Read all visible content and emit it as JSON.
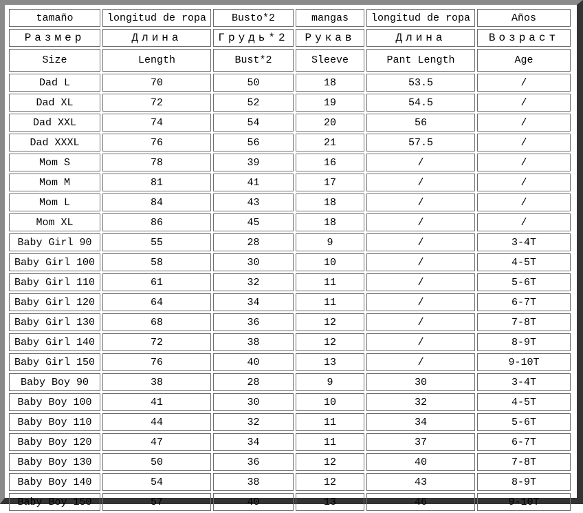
{
  "headers": {
    "spanish": [
      "tamaño",
      "longitud de ropa",
      "Busto*2",
      "mangas",
      "longitud de ropa",
      "Años"
    ],
    "russian": [
      "Размер",
      "Длина",
      "Грудь*2",
      "Рукав",
      "Длина",
      "Возраст"
    ],
    "english": [
      "Size",
      "Length",
      "Bust*2",
      "Sleeve",
      "Pant Length",
      "Age"
    ]
  },
  "rows": [
    [
      "Dad L",
      "70",
      "50",
      "18",
      "53.5",
      "/"
    ],
    [
      "Dad XL",
      "72",
      "52",
      "19",
      "54.5",
      "/"
    ],
    [
      "Dad XXL",
      "74",
      "54",
      "20",
      "56",
      "/"
    ],
    [
      "Dad XXXL",
      "76",
      "56",
      "21",
      "57.5",
      "/"
    ],
    [
      "Mom S",
      "78",
      "39",
      "16",
      "/",
      "/"
    ],
    [
      "Mom M",
      "81",
      "41",
      "17",
      "/",
      "/"
    ],
    [
      "Mom L",
      "84",
      "43",
      "18",
      "/",
      "/"
    ],
    [
      "Mom XL",
      "86",
      "45",
      "18",
      "/",
      "/"
    ],
    [
      "Baby Girl 90",
      "55",
      "28",
      "9",
      "/",
      "3-4T"
    ],
    [
      "Baby Girl 100",
      "58",
      "30",
      "10",
      "/",
      "4-5T"
    ],
    [
      "Baby Girl 110",
      "61",
      "32",
      "11",
      "/",
      "5-6T"
    ],
    [
      "Baby Girl 120",
      "64",
      "34",
      "11",
      "/",
      "6-7T"
    ],
    [
      "Baby Girl 130",
      "68",
      "36",
      "12",
      "/",
      "7-8T"
    ],
    [
      "Baby Girl 140",
      "72",
      "38",
      "12",
      "/",
      "8-9T"
    ],
    [
      "Baby Girl 150",
      "76",
      "40",
      "13",
      "/",
      "9-10T"
    ],
    [
      "Baby Boy 90",
      "38",
      "28",
      "9",
      "30",
      "3-4T"
    ],
    [
      "Baby Boy 100",
      "41",
      "30",
      "10",
      "32",
      "4-5T"
    ],
    [
      "Baby Boy 110",
      "44",
      "32",
      "11",
      "34",
      "5-6T"
    ],
    [
      "Baby Boy 120",
      "47",
      "34",
      "11",
      "37",
      "6-7T"
    ],
    [
      "Baby Boy 130",
      "50",
      "36",
      "12",
      "40",
      "7-8T"
    ],
    [
      "Baby Boy 140",
      "54",
      "38",
      "12",
      "43",
      "8-9T"
    ],
    [
      "Baby Boy 150",
      "57",
      "40",
      "13",
      "46",
      "9-10T"
    ]
  ]
}
